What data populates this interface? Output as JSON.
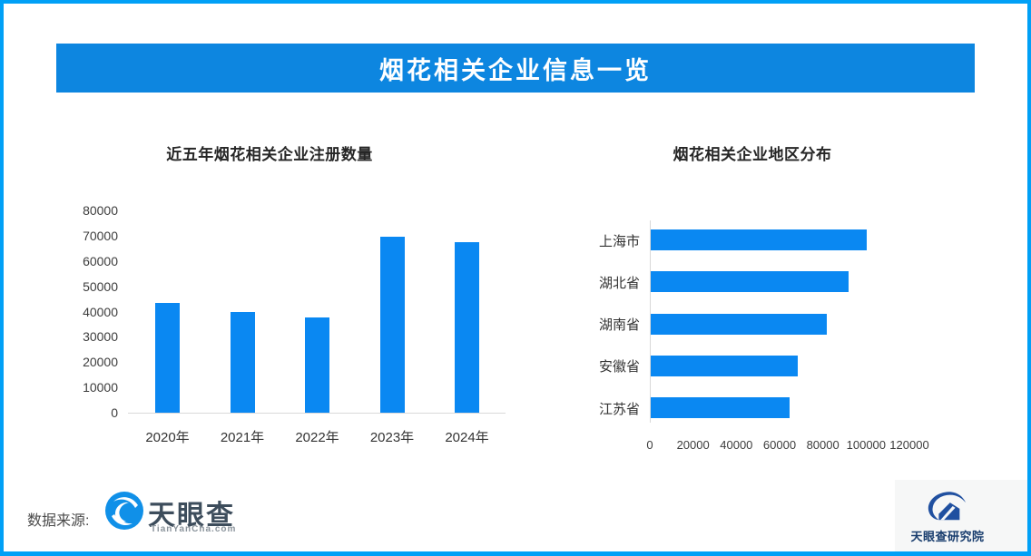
{
  "colors": {
    "frame_border": "#00a0f6",
    "header_bg": "#0d86e0",
    "bar_blue": "#0a88f2",
    "axis_gray": "#d9d9d9"
  },
  "header": {
    "title": "烟花相关企业信息一览"
  },
  "chart_data": [
    {
      "type": "bar",
      "orientation": "vertical",
      "title": "近五年烟花相关企业注册数量",
      "categories": [
        "2020年",
        "2021年",
        "2022年",
        "2023年",
        "2024年"
      ],
      "values": [
        43500,
        39800,
        37500,
        69700,
        67500
      ],
      "xlabel": "",
      "ylabel": "",
      "ylim": [
        0,
        80000
      ],
      "yticks": [
        0,
        10000,
        20000,
        30000,
        40000,
        50000,
        60000,
        70000,
        80000
      ],
      "grid": false,
      "legend": false,
      "bar_color": "#0a88f2"
    },
    {
      "type": "bar",
      "orientation": "horizontal",
      "title": "烟花相关企业地区分布",
      "categories": [
        "上海市",
        "湖北省",
        "湖南省",
        "安徽省",
        "江苏省"
      ],
      "values": [
        100000,
        91500,
        81500,
        67800,
        64000
      ],
      "xlabel": "",
      "ylabel": "",
      "xlim": [
        0,
        120000
      ],
      "xticks": [
        0,
        20000,
        40000,
        60000,
        80000,
        100000,
        120000
      ],
      "grid": false,
      "legend": false,
      "bar_color": "#0a88f2"
    }
  ],
  "footer": {
    "source_label": "数据来源:",
    "tianyancha": {
      "name": "天眼查",
      "domain": "TianYanCha.com"
    },
    "research_institute": {
      "name": "天眼查研究院"
    }
  }
}
